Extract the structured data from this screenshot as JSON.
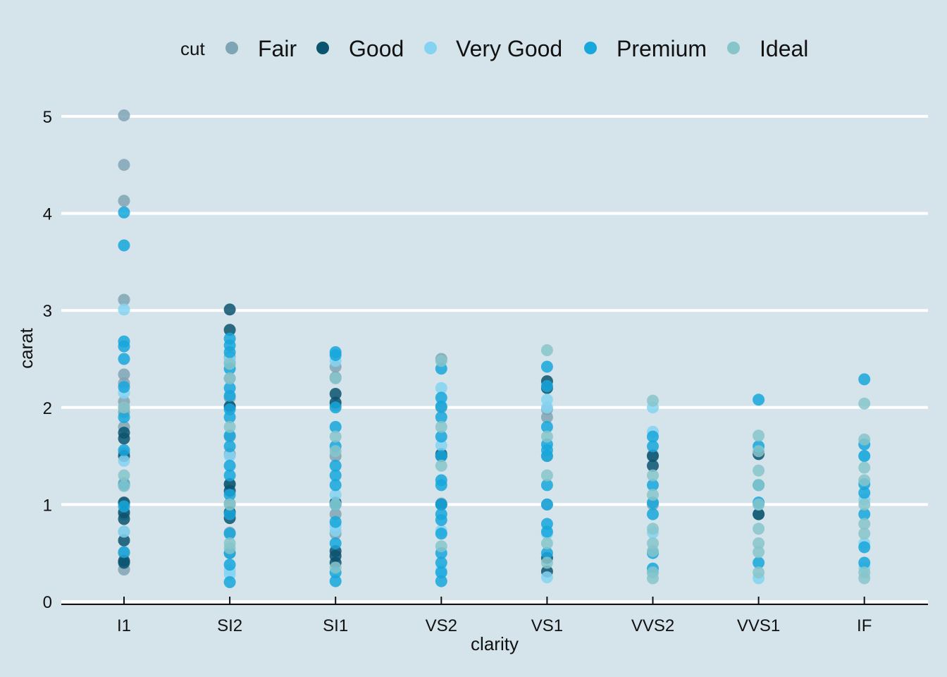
{
  "chart_data": {
    "type": "scatter",
    "title": "",
    "xlabel": "clarity",
    "ylabel": "carat",
    "ylim": [
      0,
      5.2
    ],
    "yticks": [
      0,
      1,
      2,
      3,
      4,
      5
    ],
    "grid": "horizontal",
    "legend": {
      "title": "cut",
      "position": "top"
    },
    "background": "#d5e4eb",
    "categories": [
      "I1",
      "SI2",
      "SI1",
      "VS2",
      "VS1",
      "VVS2",
      "VVS1",
      "IF"
    ],
    "series": [
      {
        "name": "Fair",
        "color": "#7fa4b5",
        "points": [
          [
            "I1",
            5.01
          ],
          [
            "I1",
            4.5
          ],
          [
            "I1",
            4.13
          ],
          [
            "I1",
            3.11
          ],
          [
            "I1",
            2.34
          ],
          [
            "I1",
            2.25
          ],
          [
            "I1",
            2.06
          ],
          [
            "I1",
            2.0
          ],
          [
            "I1",
            1.95
          ],
          [
            "I1",
            1.8
          ],
          [
            "I1",
            1.53
          ],
          [
            "I1",
            1.22
          ],
          [
            "I1",
            1.01
          ],
          [
            "I1",
            0.9
          ],
          [
            "I1",
            0.72
          ],
          [
            "I1",
            0.5
          ],
          [
            "I1",
            0.33
          ],
          [
            "SI2",
            2.52
          ],
          [
            "SI2",
            2.46
          ],
          [
            "SI2",
            2.3
          ],
          [
            "SI2",
            2.1
          ],
          [
            "SI2",
            2.01
          ],
          [
            "SI2",
            1.7
          ],
          [
            "SI2",
            1.52
          ],
          [
            "SI2",
            1.21
          ],
          [
            "SI2",
            1.01
          ],
          [
            "SI2",
            0.71
          ],
          [
            "SI2",
            0.5
          ],
          [
            "SI1",
            2.42
          ],
          [
            "SI1",
            2.31
          ],
          [
            "SI1",
            2.02
          ],
          [
            "SI1",
            1.5
          ],
          [
            "SI1",
            1.0
          ],
          [
            "SI1",
            0.9
          ],
          [
            "SI1",
            0.7
          ],
          [
            "VS2",
            2.5
          ],
          [
            "VS2",
            2.0
          ],
          [
            "VS2",
            1.5
          ],
          [
            "VS2",
            1.01
          ],
          [
            "VS1",
            1.98
          ],
          [
            "VS1",
            1.9
          ],
          [
            "VS1",
            1.5
          ],
          [
            "VS1",
            1.0
          ],
          [
            "VVS2",
            1.51
          ],
          [
            "VVS2",
            1.0
          ],
          [
            "VVS1",
            1.2
          ],
          [
            "VVS1",
            0.9
          ]
        ]
      },
      {
        "name": "Good",
        "color": "#0b5470",
        "points": [
          [
            "I1",
            1.74
          ],
          [
            "I1",
            1.68
          ],
          [
            "I1",
            1.5
          ],
          [
            "I1",
            1.02
          ],
          [
            "I1",
            0.92
          ],
          [
            "I1",
            0.85
          ],
          [
            "I1",
            0.63
          ],
          [
            "I1",
            0.42
          ],
          [
            "I1",
            0.4
          ],
          [
            "SI2",
            3.01
          ],
          [
            "SI2",
            2.8
          ],
          [
            "SI2",
            2.01
          ],
          [
            "SI2",
            1.21
          ],
          [
            "SI2",
            1.14
          ],
          [
            "SI2",
            0.92
          ],
          [
            "SI2",
            0.86
          ],
          [
            "SI1",
            2.14
          ],
          [
            "SI1",
            2.05
          ],
          [
            "SI1",
            1.02
          ],
          [
            "SI1",
            0.52
          ],
          [
            "SI1",
            0.47
          ],
          [
            "SI1",
            0.4
          ],
          [
            "VS2",
            1.52
          ],
          [
            "VS2",
            1.5
          ],
          [
            "VS2",
            1.0
          ],
          [
            "VS1",
            2.27
          ],
          [
            "VS1",
            2.2
          ],
          [
            "VS1",
            0.45
          ],
          [
            "VS1",
            0.31
          ],
          [
            "VVS2",
            1.5
          ],
          [
            "VVS2",
            1.4
          ],
          [
            "VVS1",
            1.52
          ],
          [
            "VVS1",
            0.9
          ]
        ]
      },
      {
        "name": "Very Good",
        "color": "#85d3f2",
        "points": [
          [
            "I1",
            3.01
          ],
          [
            "I1",
            2.15
          ],
          [
            "I1",
            1.45
          ],
          [
            "I1",
            0.72
          ],
          [
            "SI2",
            2.5
          ],
          [
            "SI2",
            1.5
          ],
          [
            "SI2",
            0.32
          ],
          [
            "SI2",
            0.28
          ],
          [
            "SI1",
            2.48
          ],
          [
            "SI1",
            1.1
          ],
          [
            "SI1",
            0.78
          ],
          [
            "SI1",
            0.73
          ],
          [
            "VS2",
            2.2
          ],
          [
            "VS2",
            1.61
          ],
          [
            "VS2",
            0.73
          ],
          [
            "VS2",
            0.32
          ],
          [
            "VS1",
            2.08
          ],
          [
            "VS1",
            2.0
          ],
          [
            "VS1",
            0.7
          ],
          [
            "VS1",
            0.25
          ],
          [
            "VVS2",
            2.0
          ],
          [
            "VVS2",
            1.75
          ],
          [
            "VVS2",
            0.71
          ],
          [
            "VVS2",
            0.3
          ],
          [
            "VVS1",
            1.0
          ],
          [
            "VVS1",
            0.24
          ],
          [
            "IF",
            1.5
          ],
          [
            "IF",
            1.05
          ],
          [
            "IF",
            0.6
          ],
          [
            "IF",
            0.35
          ]
        ]
      },
      {
        "name": "Premium",
        "color": "#17a7dc",
        "points": [
          [
            "I1",
            4.01
          ],
          [
            "I1",
            3.67
          ],
          [
            "I1",
            2.68
          ],
          [
            "I1",
            2.63
          ],
          [
            "I1",
            2.5
          ],
          [
            "I1",
            2.21
          ],
          [
            "I1",
            1.9
          ],
          [
            "I1",
            1.56
          ],
          [
            "I1",
            1.2
          ],
          [
            "I1",
            0.98
          ],
          [
            "I1",
            0.51
          ],
          [
            "SI2",
            2.71
          ],
          [
            "SI2",
            2.64
          ],
          [
            "SI2",
            2.57
          ],
          [
            "SI2",
            2.4
          ],
          [
            "SI2",
            2.2
          ],
          [
            "SI2",
            2.12
          ],
          [
            "SI2",
            1.98
          ],
          [
            "SI2",
            1.9
          ],
          [
            "SI2",
            1.71
          ],
          [
            "SI2",
            1.6
          ],
          [
            "SI2",
            1.4
          ],
          [
            "SI2",
            1.3
          ],
          [
            "SI2",
            1.1
          ],
          [
            "SI2",
            0.9
          ],
          [
            "SI2",
            0.7
          ],
          [
            "SI2",
            0.5
          ],
          [
            "SI2",
            0.38
          ],
          [
            "SI2",
            0.2
          ],
          [
            "SI1",
            2.57
          ],
          [
            "SI1",
            2.54
          ],
          [
            "SI1",
            2.0
          ],
          [
            "SI1",
            1.8
          ],
          [
            "SI1",
            1.6
          ],
          [
            "SI1",
            1.4
          ],
          [
            "SI1",
            1.3
          ],
          [
            "SI1",
            1.2
          ],
          [
            "SI1",
            1.0
          ],
          [
            "SI1",
            0.82
          ],
          [
            "SI1",
            0.6
          ],
          [
            "SI1",
            0.3
          ],
          [
            "SI1",
            0.21
          ],
          [
            "VS2",
            2.4
          ],
          [
            "VS2",
            2.1
          ],
          [
            "VS2",
            2.01
          ],
          [
            "VS2",
            1.9
          ],
          [
            "VS2",
            1.7
          ],
          [
            "VS2",
            1.5
          ],
          [
            "VS2",
            1.25
          ],
          [
            "VS2",
            1.2
          ],
          [
            "VS2",
            1.0
          ],
          [
            "VS2",
            0.9
          ],
          [
            "VS2",
            0.84
          ],
          [
            "VS2",
            0.7
          ],
          [
            "VS2",
            0.5
          ],
          [
            "VS2",
            0.4
          ],
          [
            "VS2",
            0.3
          ],
          [
            "VS2",
            0.21
          ],
          [
            "VS1",
            2.42
          ],
          [
            "VS1",
            2.22
          ],
          [
            "VS1",
            1.8
          ],
          [
            "VS1",
            1.62
          ],
          [
            "VS1",
            1.56
          ],
          [
            "VS1",
            1.5
          ],
          [
            "VS1",
            1.2
          ],
          [
            "VS1",
            1.0
          ],
          [
            "VS1",
            0.8
          ],
          [
            "VS1",
            0.72
          ],
          [
            "VS1",
            0.5
          ],
          [
            "VVS2",
            1.7
          ],
          [
            "VVS2",
            1.6
          ],
          [
            "VVS2",
            1.2
          ],
          [
            "VVS2",
            1.02
          ],
          [
            "VVS2",
            0.9
          ],
          [
            "VVS2",
            0.5
          ],
          [
            "VVS2",
            0.34
          ],
          [
            "VVS1",
            2.08
          ],
          [
            "VVS1",
            1.6
          ],
          [
            "VVS1",
            1.2
          ],
          [
            "VVS1",
            1.02
          ],
          [
            "VVS1",
            0.4
          ],
          [
            "IF",
            2.29
          ],
          [
            "IF",
            1.62
          ],
          [
            "IF",
            1.5
          ],
          [
            "IF",
            1.21
          ],
          [
            "IF",
            1.12
          ],
          [
            "IF",
            0.9
          ],
          [
            "IF",
            0.56
          ],
          [
            "IF",
            0.4
          ]
        ]
      },
      {
        "name": "Ideal",
        "color": "#86c5ca",
        "points": [
          [
            "I1",
            2.0
          ],
          [
            "I1",
            1.3
          ],
          [
            "I1",
            1.19
          ],
          [
            "SI2",
            2.45
          ],
          [
            "SI2",
            2.3
          ],
          [
            "SI2",
            1.8
          ],
          [
            "SI2",
            1.0
          ],
          [
            "SI2",
            0.6
          ],
          [
            "SI2",
            0.55
          ],
          [
            "SI1",
            2.3
          ],
          [
            "SI1",
            1.7
          ],
          [
            "SI1",
            1.55
          ],
          [
            "SI1",
            1.0
          ],
          [
            "SI1",
            0.35
          ],
          [
            "VS2",
            2.48
          ],
          [
            "VS2",
            1.8
          ],
          [
            "VS2",
            1.4
          ],
          [
            "VS2",
            0.57
          ],
          [
            "VS1",
            2.59
          ],
          [
            "VS1",
            1.7
          ],
          [
            "VS1",
            1.3
          ],
          [
            "VS1",
            0.6
          ],
          [
            "VS1",
            0.4
          ],
          [
            "VVS2",
            2.07
          ],
          [
            "VVS2",
            1.3
          ],
          [
            "VVS2",
            1.1
          ],
          [
            "VVS2",
            0.75
          ],
          [
            "VVS2",
            0.6
          ],
          [
            "VVS2",
            0.52
          ],
          [
            "VVS2",
            0.3
          ],
          [
            "VVS2",
            0.24
          ],
          [
            "VVS1",
            1.71
          ],
          [
            "VVS1",
            1.55
          ],
          [
            "VVS1",
            1.35
          ],
          [
            "VVS1",
            1.2
          ],
          [
            "VVS1",
            1.0
          ],
          [
            "VVS1",
            0.75
          ],
          [
            "VVS1",
            0.6
          ],
          [
            "VVS1",
            0.51
          ],
          [
            "VVS1",
            0.3
          ],
          [
            "IF",
            2.04
          ],
          [
            "IF",
            1.67
          ],
          [
            "IF",
            1.38
          ],
          [
            "IF",
            1.25
          ],
          [
            "IF",
            1.0
          ],
          [
            "IF",
            0.8
          ],
          [
            "IF",
            0.7
          ],
          [
            "IF",
            0.3
          ],
          [
            "IF",
            0.24
          ]
        ]
      }
    ]
  }
}
